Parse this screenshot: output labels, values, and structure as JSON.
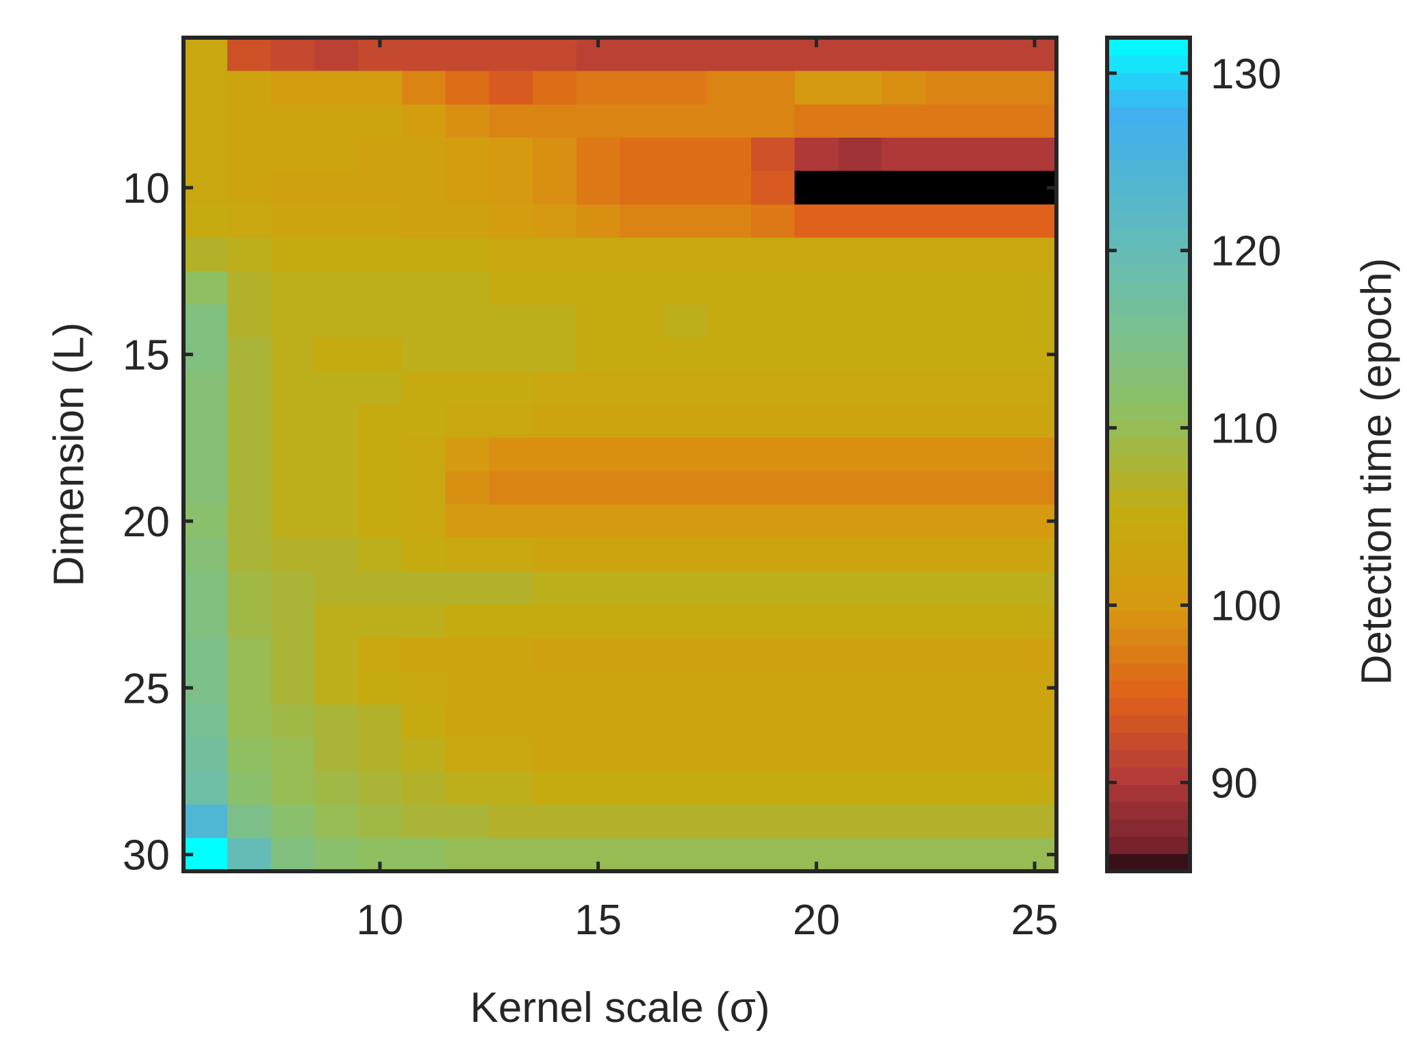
{
  "chart_data": {
    "type": "heatmap",
    "title": "",
    "x": [
      6,
      7,
      8,
      9,
      10,
      11,
      12,
      13,
      14,
      15,
      16,
      17,
      18,
      19,
      20,
      21,
      22,
      23,
      24,
      25
    ],
    "y": [
      6,
      7,
      8,
      9,
      10,
      11,
      12,
      13,
      14,
      15,
      16,
      17,
      18,
      19,
      20,
      21,
      22,
      23,
      24,
      25,
      26,
      27,
      28,
      29,
      30
    ],
    "z": [
      [
        104,
        93,
        92,
        91,
        92,
        92,
        92,
        92,
        92,
        91,
        91,
        91,
        91,
        91,
        91,
        91,
        91,
        91,
        91,
        91
      ],
      [
        104,
        103,
        101,
        101,
        101,
        98,
        96,
        94,
        96,
        97,
        97,
        97,
        98,
        98,
        100,
        100,
        99,
        98,
        98,
        98
      ],
      [
        104,
        103,
        103,
        103,
        103,
        101,
        99,
        98,
        98,
        98,
        98,
        98,
        98,
        98,
        97,
        97,
        97,
        97,
        97,
        97
      ],
      [
        104,
        103,
        103,
        103,
        102,
        102,
        101,
        100,
        99,
        97,
        96,
        96,
        96,
        93,
        90,
        89,
        90,
        90,
        90,
        90
      ],
      [
        104,
        103,
        102,
        102,
        102,
        102,
        101,
        100,
        99,
        97,
        96,
        96,
        96,
        94,
        85,
        85,
        85,
        85,
        85,
        85
      ],
      [
        105,
        104,
        103,
        103,
        103,
        102,
        102,
        101,
        100,
        99,
        98,
        98,
        98,
        97,
        95,
        95,
        95,
        95,
        95,
        95
      ],
      [
        107,
        106,
        105,
        105,
        105,
        105,
        105,
        104,
        104,
        104,
        104,
        104,
        104,
        104,
        104,
        104,
        104,
        104,
        104,
        104
      ],
      [
        111,
        107,
        106,
        106,
        106,
        106,
        106,
        105,
        105,
        105,
        105,
        105,
        105,
        105,
        105,
        105,
        105,
        105,
        105,
        105
      ],
      [
        114,
        107,
        106,
        106,
        106,
        106,
        106,
        106,
        106,
        105,
        105,
        106,
        105,
        105,
        105,
        105,
        105,
        105,
        105,
        105
      ],
      [
        114,
        108,
        106,
        105,
        105,
        106,
        106,
        106,
        106,
        105,
        105,
        105,
        105,
        105,
        105,
        105,
        105,
        105,
        105,
        105
      ],
      [
        113,
        108,
        106,
        106,
        106,
        105,
        105,
        105,
        104,
        104,
        104,
        104,
        104,
        104,
        104,
        104,
        104,
        104,
        104,
        104
      ],
      [
        113,
        108,
        106,
        106,
        105,
        105,
        104,
        104,
        103,
        103,
        103,
        103,
        103,
        103,
        103,
        103,
        103,
        103,
        103,
        103
      ],
      [
        113,
        108,
        106,
        106,
        105,
        104,
        100,
        99,
        99,
        99,
        99,
        99,
        99,
        99,
        99,
        99,
        99,
        99,
        99,
        99
      ],
      [
        113,
        108,
        106,
        106,
        105,
        104,
        99,
        98,
        98,
        98,
        98,
        98,
        98,
        98,
        98,
        98,
        98,
        98,
        98,
        98
      ],
      [
        112,
        108,
        106,
        106,
        105,
        104,
        100,
        100,
        100,
        100,
        100,
        100,
        100,
        100,
        100,
        100,
        100,
        100,
        100,
        100
      ],
      [
        113,
        108,
        107,
        107,
        106,
        105,
        104,
        104,
        103,
        103,
        103,
        103,
        103,
        103,
        103,
        103,
        103,
        103,
        103,
        103
      ],
      [
        114,
        109,
        108,
        107,
        107,
        107,
        107,
        107,
        106,
        106,
        106,
        106,
        106,
        106,
        106,
        106,
        106,
        106,
        106,
        106
      ],
      [
        114,
        109,
        108,
        106,
        106,
        106,
        105,
        105,
        105,
        105,
        105,
        105,
        105,
        105,
        105,
        105,
        105,
        105,
        105,
        105
      ],
      [
        115,
        110,
        108,
        106,
        104,
        103,
        103,
        103,
        102,
        102,
        102,
        102,
        102,
        102,
        102,
        102,
        102,
        102,
        102,
        102
      ],
      [
        115,
        110,
        108,
        106,
        105,
        104,
        103,
        103,
        103,
        103,
        103,
        103,
        103,
        103,
        103,
        103,
        103,
        103,
        103,
        103
      ],
      [
        116,
        110,
        109,
        108,
        107,
        105,
        103,
        103,
        103,
        103,
        103,
        103,
        103,
        103,
        103,
        103,
        103,
        103,
        103,
        103
      ],
      [
        117,
        111,
        110,
        108,
        107,
        106,
        104,
        104,
        103,
        103,
        103,
        103,
        103,
        103,
        103,
        103,
        103,
        103,
        103,
        103
      ],
      [
        118,
        112,
        110,
        109,
        108,
        107,
        106,
        106,
        105,
        105,
        105,
        105,
        105,
        105,
        105,
        105,
        105,
        105,
        105,
        105
      ],
      [
        124,
        115,
        112,
        110,
        109,
        108,
        108,
        107,
        107,
        107,
        107,
        107,
        107,
        107,
        107,
        107,
        107,
        107,
        107,
        107
      ],
      [
        132,
        120,
        114,
        112,
        111,
        111,
        110,
        110,
        110,
        110,
        110,
        110,
        110,
        110,
        110,
        110,
        110,
        110,
        110,
        110
      ]
    ],
    "xlabel": "Kernel scale (σ)",
    "ylabel": "Dimension (L)",
    "x_ticks": [
      10,
      15,
      20,
      25
    ],
    "y_ticks": [
      10,
      15,
      20,
      25,
      30
    ],
    "xlim": [
      5.5,
      25.5
    ],
    "ylim": [
      5.5,
      30.5
    ],
    "y_reversed": true,
    "colorbar": {
      "label": "Detection time (epoch)",
      "ticks": [
        90,
        100,
        110,
        120,
        130
      ],
      "range": [
        85,
        132
      ],
      "colors": [
        "#000000",
        "#6e1f2a",
        "#b23a3a",
        "#e0611a",
        "#d69a10",
        "#c4ab10",
        "#8fbf60",
        "#6fbfa6",
        "#3fb0f0",
        "#00ffff"
      ],
      "stops": [
        0,
        0.02,
        0.11,
        0.21,
        0.32,
        0.43,
        0.55,
        0.7,
        0.91,
        1.0
      ]
    },
    "grid": false,
    "legend": "none"
  }
}
